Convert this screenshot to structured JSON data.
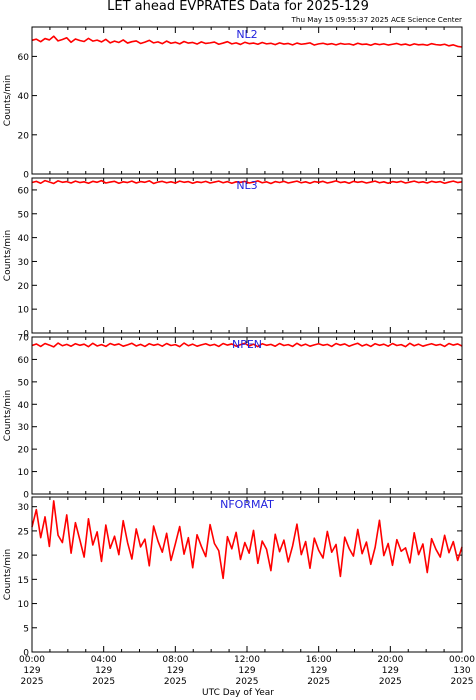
{
  "title": "LET ahead EVPRATES Data for 2025-129",
  "timestamp": "Thu May 15 09:55:37 2025 ACE Science Center",
  "xlabel": "UTC Day of Year",
  "colors": {
    "series": "#ff0000",
    "panel_label": "#2222dd",
    "axes": "#000000"
  },
  "x_ticks": [
    {
      "time": "00:00",
      "day": "129",
      "year": "2025"
    },
    {
      "time": "04:00",
      "day": "129",
      "year": "2025"
    },
    {
      "time": "08:00",
      "day": "129",
      "year": "2025"
    },
    {
      "time": "12:00",
      "day": "129",
      "year": "2025"
    },
    {
      "time": "16:00",
      "day": "129",
      "year": "2025"
    },
    {
      "time": "20:00",
      "day": "129",
      "year": "2025"
    },
    {
      "time": "00:00",
      "day": "130",
      "year": "2025"
    }
  ],
  "chart_data": [
    {
      "type": "line",
      "name": "NL2",
      "ylabel": "Counts/min",
      "ylim": [
        0,
        75
      ],
      "yticks": [
        0,
        20,
        40,
        60
      ],
      "xlim_hours": [
        0,
        24
      ],
      "values": [
        68.2,
        68.8,
        67.5,
        69.1,
        68.4,
        70.3,
        67.9,
        68.6,
        69.5,
        67.2,
        68.9,
        68.1,
        67.6,
        69.2,
        67.8,
        68.3,
        67.4,
        68.7,
        66.9,
        67.8,
        67.1,
        68.4,
        66.8,
        67.5,
        67.9,
        66.6,
        67.3,
        68.2,
        66.9,
        67.4,
        66.5,
        67.8,
        66.7,
        67.2,
        66.4,
        67.6,
        66.8,
        67.1,
        66.3,
        67.4,
        66.6,
        66.9,
        67.3,
        66.2,
        66.8,
        67.5,
        66.4,
        66.9,
        66.1,
        67.2,
        66.5,
        66.8,
        66.2,
        67.1,
        66.4,
        66.7,
        66.0,
        66.9,
        66.3,
        66.6,
        65.9,
        66.8,
        66.2,
        66.5,
        66.9,
        65.8,
        66.4,
        66.7,
        66.1,
        66.5,
        65.9,
        66.6,
        66.2,
        66.4,
        65.8,
        66.7,
        66.1,
        66.3,
        65.7,
        66.5,
        66.0,
        66.4,
        65.8,
        66.2,
        66.6,
        65.9,
        66.3,
        65.6,
        66.4,
        65.9,
        66.1,
        65.7,
        66.5,
        66.0,
        65.8,
        66.2,
        65.4,
        65.9,
        65.1,
        64.8
      ]
    },
    {
      "type": "line",
      "name": "NL3",
      "ylabel": "Counts/min",
      "ylim": [
        0,
        65
      ],
      "yticks": [
        0,
        10,
        20,
        30,
        40,
        50,
        60
      ],
      "xlim_hours": [
        0,
        24
      ],
      "values": [
        63.1,
        63.6,
        62.8,
        63.9,
        63.3,
        62.7,
        63.8,
        63.2,
        63.5,
        62.9,
        63.7,
        63.1,
        63.4,
        62.8,
        63.6,
        63.2,
        63.9,
        62.9,
        63.3,
        63.6,
        62.8,
        63.4,
        63.1,
        63.7,
        62.9,
        63.5,
        63.2,
        63.8,
        62.7,
        63.3,
        63.6,
        63.0,
        63.4,
        62.9,
        63.7,
        63.2,
        63.5,
        62.8,
        63.4,
        63.1,
        63.6,
        62.9,
        63.3,
        63.7,
        63.0,
        63.5,
        62.8,
        63.4,
        63.2,
        63.6,
        62.9,
        63.3,
        63.8,
        63.0,
        63.4,
        62.7,
        63.5,
        63.1,
        63.6,
        62.9,
        63.3,
        63.7,
        63.0,
        63.4,
        62.8,
        63.5,
        63.2,
        63.6,
        62.9,
        63.3,
        63.8,
        63.1,
        63.4,
        62.8,
        63.6,
        63.2,
        63.5,
        62.9,
        63.3,
        63.7,
        63.0,
        63.4,
        62.8,
        63.5,
        63.2,
        63.6,
        62.9,
        63.3,
        63.7,
        63.1,
        63.4,
        62.9,
        63.6,
        63.2,
        63.5,
        62.8,
        63.3,
        63.7,
        63.1,
        63.4
      ]
    },
    {
      "type": "line",
      "name": "NPEN",
      "ylabel": "Counts/min",
      "ylim": [
        0,
        70
      ],
      "yticks": [
        0,
        10,
        20,
        30,
        40,
        50,
        60,
        70
      ],
      "xlim_hours": [
        0,
        24
      ],
      "values": [
        66.2,
        66.9,
        65.8,
        67.1,
        66.4,
        65.6,
        67.3,
        66.1,
        66.7,
        65.9,
        67.0,
        66.3,
        66.8,
        65.7,
        67.2,
        66.0,
        66.6,
        65.8,
        67.1,
        66.4,
        66.9,
        65.9,
        66.5,
        67.2,
        66.0,
        66.7,
        65.8,
        67.0,
        66.3,
        66.8,
        65.9,
        67.1,
        66.2,
        66.6,
        65.7,
        67.3,
        66.1,
        66.8,
        65.9,
        66.5,
        67.0,
        66.2,
        66.7,
        65.8,
        67.1,
        66.4,
        66.9,
        65.9,
        66.6,
        67.2,
        66.0,
        66.8,
        65.7,
        67.0,
        66.3,
        66.7,
        65.9,
        67.1,
        66.2,
        66.6,
        65.8,
        67.2,
        66.1,
        66.8,
        65.9,
        66.5,
        67.0,
        66.3,
        66.7,
        65.8,
        67.1,
        66.4,
        66.9,
        65.9,
        66.6,
        67.2,
        66.0,
        66.7,
        65.8,
        67.0,
        66.3,
        66.8,
        65.9,
        67.1,
        66.2,
        66.6,
        65.7,
        67.2,
        66.1,
        66.8,
        65.9,
        66.5,
        67.0,
        66.3,
        66.7,
        65.8,
        67.1,
        66.4,
        66.9,
        66.0
      ]
    },
    {
      "type": "line",
      "name": "NFORMAT",
      "ylabel": "Counts/min",
      "ylim": [
        0,
        32
      ],
      "yticks": [
        0,
        5,
        10,
        15,
        20,
        25,
        30
      ],
      "xlim_hours": [
        0,
        24
      ],
      "values": [
        25.8,
        29.4,
        23.6,
        27.9,
        21.8,
        31.2,
        24.1,
        22.6,
        28.3,
        20.4,
        26.7,
        23.2,
        19.6,
        27.5,
        22.1,
        24.8,
        18.7,
        26.2,
        21.4,
        23.9,
        20.1,
        27.1,
        22.6,
        19.2,
        25.4,
        21.7,
        23.3,
        17.8,
        26.0,
        22.9,
        20.6,
        24.5,
        18.9,
        22.3,
        25.9,
        20.2,
        23.6,
        17.4,
        24.2,
        21.8,
        19.7,
        26.3,
        22.4,
        20.9,
        15.2,
        23.8,
        21.3,
        24.7,
        19.1,
        22.6,
        20.4,
        25.1,
        18.3,
        22.9,
        21.2,
        16.8,
        24.3,
        20.7,
        23.1,
        18.6,
        21.9,
        26.4,
        20.1,
        22.8,
        17.3,
        23.5,
        21.0,
        19.4,
        24.9,
        20.6,
        22.2,
        15.6,
        23.7,
        21.4,
        19.8,
        25.3,
        20.3,
        22.7,
        18.1,
        21.6,
        27.2,
        19.9,
        22.4,
        17.9,
        23.2,
        20.8,
        21.5,
        18.4,
        24.6,
        20.1,
        22.3,
        16.4,
        23.4,
        21.2,
        19.6,
        24.1,
        20.5,
        22.8,
        18.9,
        21.7
      ]
    }
  ]
}
